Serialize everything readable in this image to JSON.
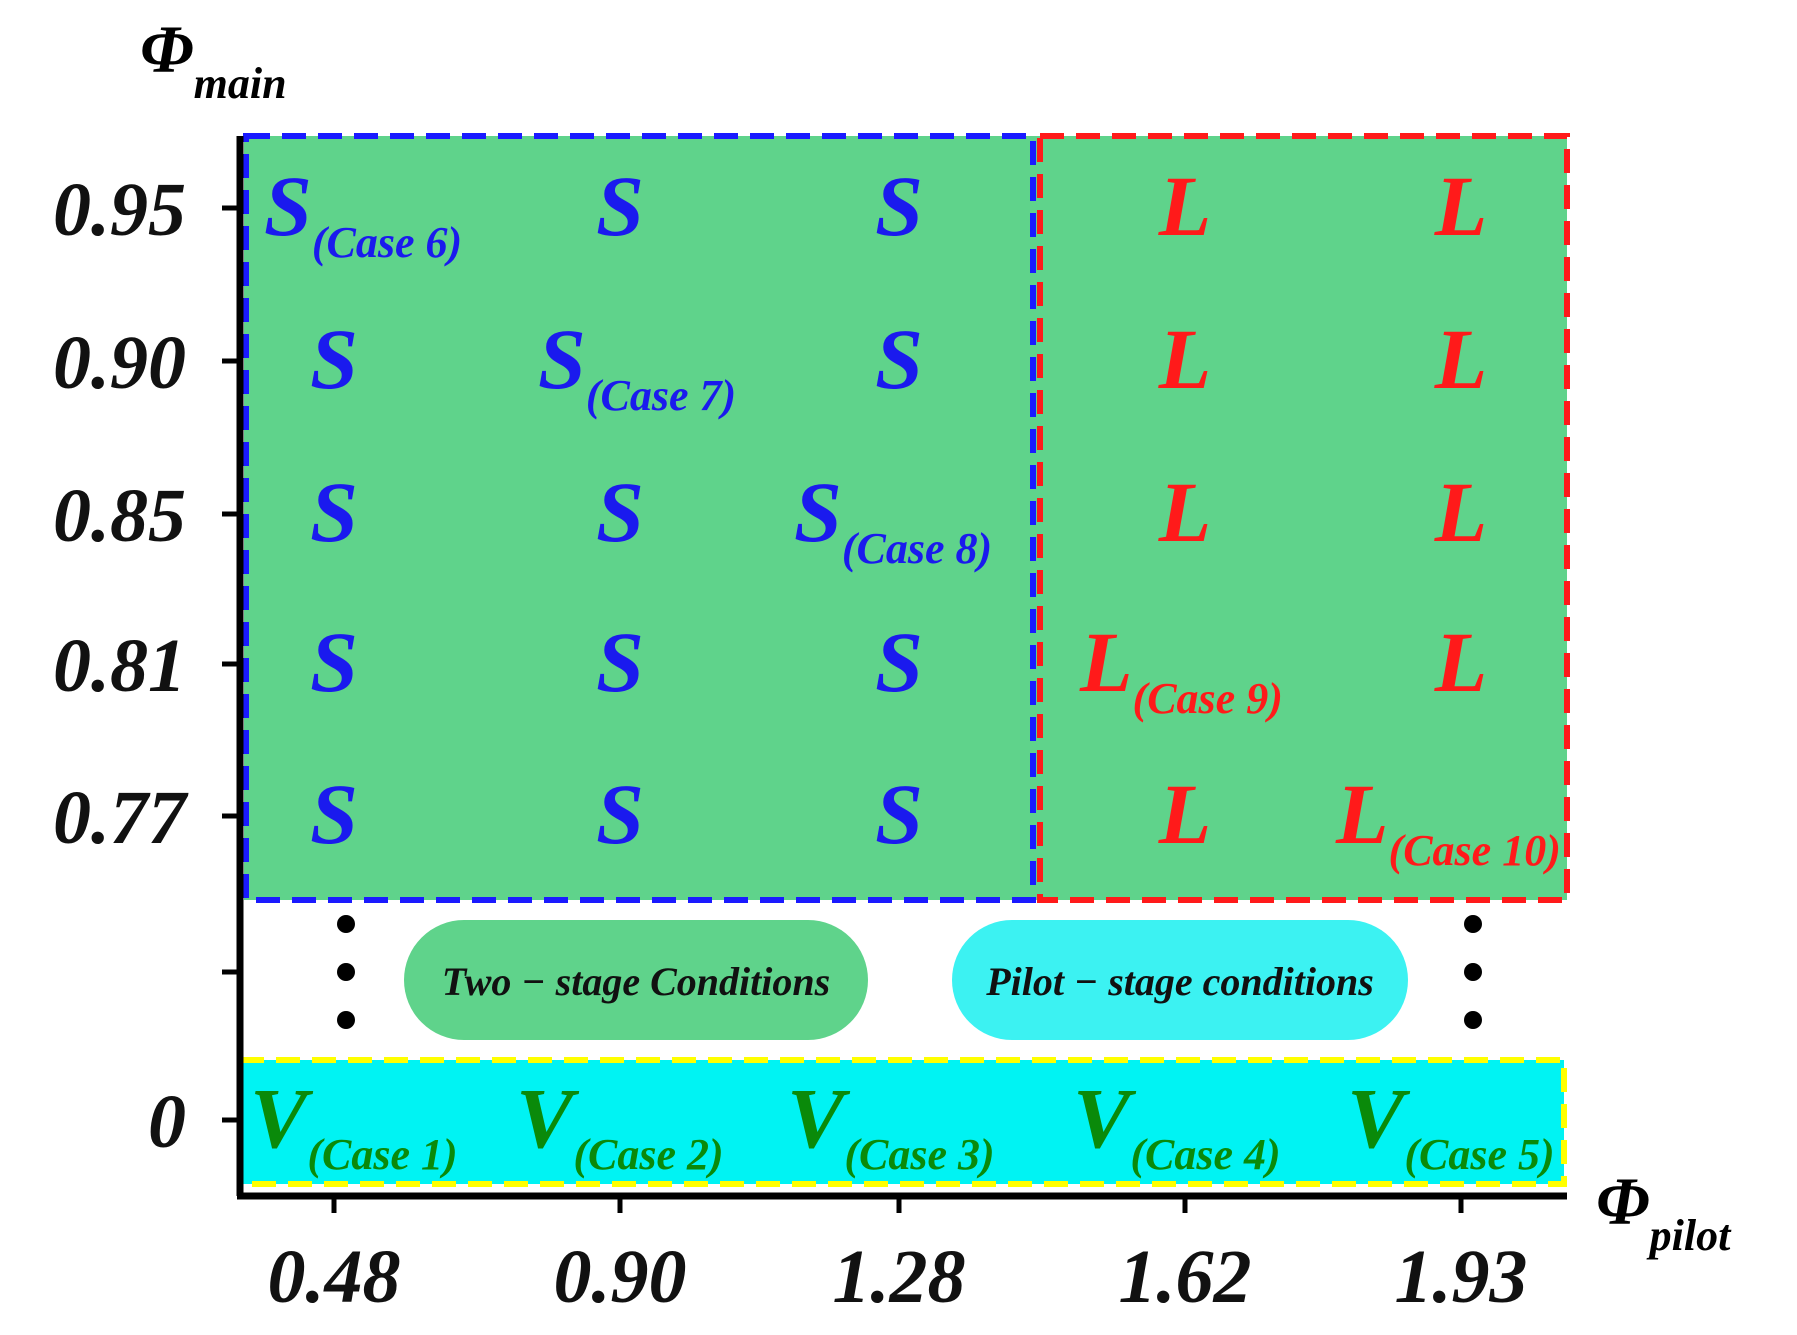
{
  "chart_data": {
    "type": "scatter",
    "title": "",
    "xlabel": "Φ",
    "xlabel_sub": "pilot",
    "ylabel": "Φ",
    "ylabel_sub": "main",
    "x_ticks": [
      "0.48",
      "0.90",
      "1.28",
      "1.62",
      "1.93"
    ],
    "y_ticks": [
      "0.95",
      "0.90",
      "0.85",
      "0.81",
      "0.77",
      "0"
    ],
    "regions": [
      {
        "name": "Two-stage S region",
        "fill": "#5fd38b",
        "border": "#1a1aff",
        "style": "dashed"
      },
      {
        "name": "Two-stage L region",
        "fill": "#5fd38b",
        "border": "#ff1a1a",
        "style": "dashed"
      },
      {
        "name": "Pilot-stage region",
        "fill": "#00f3f3",
        "border": "#ffff00",
        "style": "dashed"
      }
    ],
    "legend": [
      {
        "label": "Two − stage Conditions",
        "color": "#5fd38b"
      },
      {
        "label": "Pilot − stage conditions",
        "color": "#3cf2f2"
      }
    ],
    "colors": {
      "S": "#1a1aee",
      "L": "#ff1a1a",
      "V": "#0a8a0a"
    },
    "points": [
      {
        "x": "0.48",
        "y": "0.95",
        "label": "S",
        "case": "(Case 6)"
      },
      {
        "x": "0.90",
        "y": "0.95",
        "label": "S",
        "case": ""
      },
      {
        "x": "1.28",
        "y": "0.95",
        "label": "S",
        "case": ""
      },
      {
        "x": "1.62",
        "y": "0.95",
        "label": "L",
        "case": ""
      },
      {
        "x": "1.93",
        "y": "0.95",
        "label": "L",
        "case": ""
      },
      {
        "x": "0.48",
        "y": "0.90",
        "label": "S",
        "case": ""
      },
      {
        "x": "0.90",
        "y": "0.90",
        "label": "S",
        "case": "(Case 7)"
      },
      {
        "x": "1.28",
        "y": "0.90",
        "label": "S",
        "case": ""
      },
      {
        "x": "1.62",
        "y": "0.90",
        "label": "L",
        "case": ""
      },
      {
        "x": "1.93",
        "y": "0.90",
        "label": "L",
        "case": ""
      },
      {
        "x": "0.48",
        "y": "0.85",
        "label": "S",
        "case": ""
      },
      {
        "x": "0.90",
        "y": "0.85",
        "label": "S",
        "case": ""
      },
      {
        "x": "1.28",
        "y": "0.85",
        "label": "S",
        "case": "(Case 8)"
      },
      {
        "x": "1.62",
        "y": "0.85",
        "label": "L",
        "case": ""
      },
      {
        "x": "1.93",
        "y": "0.85",
        "label": "L",
        "case": ""
      },
      {
        "x": "0.48",
        "y": "0.81",
        "label": "S",
        "case": ""
      },
      {
        "x": "0.90",
        "y": "0.81",
        "label": "S",
        "case": ""
      },
      {
        "x": "1.28",
        "y": "0.81",
        "label": "S",
        "case": ""
      },
      {
        "x": "1.62",
        "y": "0.81",
        "label": "L",
        "case": "(Case 9)"
      },
      {
        "x": "1.93",
        "y": "0.81",
        "label": "L",
        "case": ""
      },
      {
        "x": "0.48",
        "y": "0.77",
        "label": "S",
        "case": ""
      },
      {
        "x": "0.90",
        "y": "0.77",
        "label": "S",
        "case": ""
      },
      {
        "x": "1.28",
        "y": "0.77",
        "label": "S",
        "case": ""
      },
      {
        "x": "1.62",
        "y": "0.77",
        "label": "L",
        "case": ""
      },
      {
        "x": "1.93",
        "y": "0.77",
        "label": "L",
        "case": "(Case 10)"
      },
      {
        "x": "0.48",
        "y": "0",
        "label": "V",
        "case": "(Case 1)"
      },
      {
        "x": "0.90",
        "y": "0",
        "label": "V",
        "case": "(Case 2)"
      },
      {
        "x": "1.28",
        "y": "0",
        "label": "V",
        "case": "(Case 3)"
      },
      {
        "x": "1.62",
        "y": "0",
        "label": "V",
        "case": "(Case 4)"
      },
      {
        "x": "1.93",
        "y": "0",
        "label": "V",
        "case": "(Case 5)"
      }
    ]
  }
}
